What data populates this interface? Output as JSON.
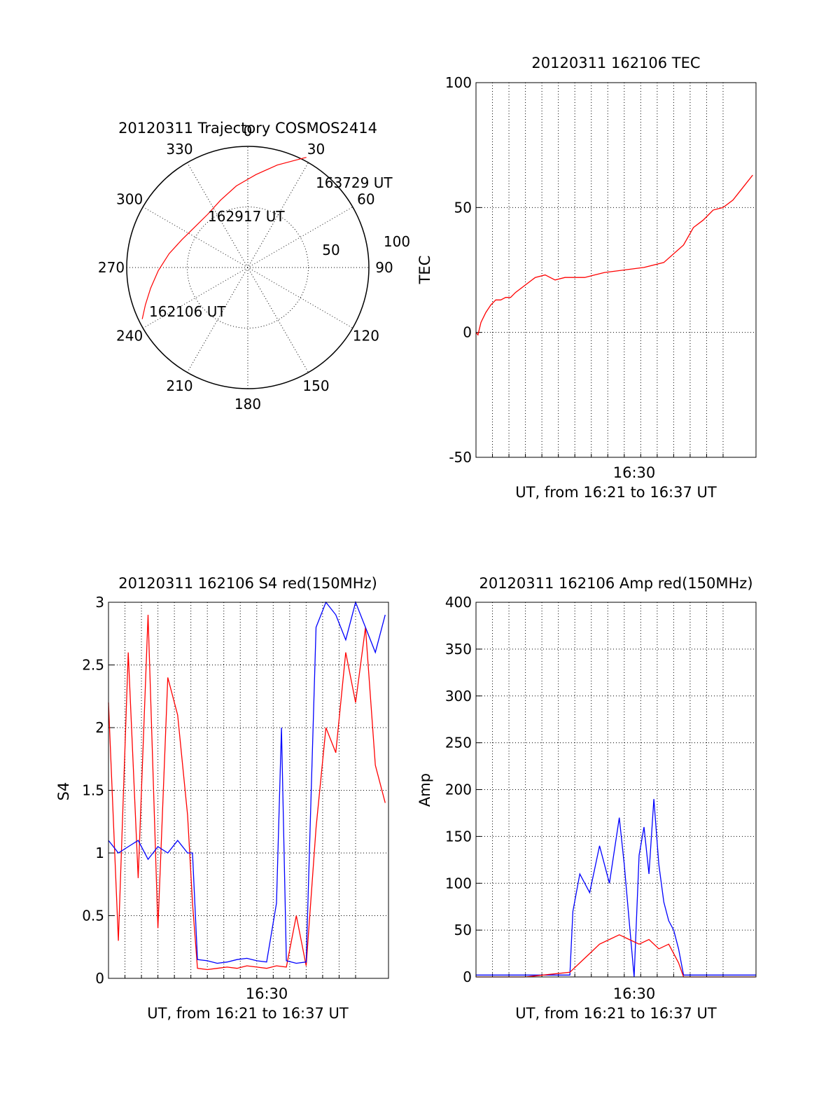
{
  "colors": {
    "red_series": "#ff0000",
    "blue_series": "#0000ff",
    "axes": "#000000"
  },
  "chart_data": [
    {
      "type": "polar",
      "title": "20120311 Trajectory COSMOS2414",
      "angle_labels": [
        {
          "angle": 0,
          "text": "0"
        },
        {
          "angle": 30,
          "text": "30"
        },
        {
          "angle": 60,
          "text": "60"
        },
        {
          "angle": 90,
          "text": "90"
        },
        {
          "angle": 120,
          "text": "120"
        },
        {
          "angle": 150,
          "text": "150"
        },
        {
          "angle": 180,
          "text": "180"
        },
        {
          "angle": 210,
          "text": "210"
        },
        {
          "angle": 240,
          "text": "240"
        },
        {
          "angle": 270,
          "text": "270"
        },
        {
          "angle": 300,
          "text": "300"
        },
        {
          "angle": 330,
          "text": "330"
        }
      ],
      "ring_labels": [
        "50",
        "100"
      ],
      "rings": [
        50,
        100
      ],
      "r_max": 100,
      "trajectory": [
        {
          "az": 244,
          "r": 97
        },
        {
          "az": 250,
          "r": 90
        },
        {
          "az": 258,
          "r": 82
        },
        {
          "az": 268,
          "r": 74
        },
        {
          "az": 280,
          "r": 66
        },
        {
          "az": 293,
          "r": 59
        },
        {
          "az": 308,
          "r": 55
        },
        {
          "az": 323,
          "r": 55
        },
        {
          "az": 338,
          "r": 60
        },
        {
          "az": 352,
          "r": 68
        },
        {
          "az": 5,
          "r": 77
        },
        {
          "az": 16,
          "r": 88
        },
        {
          "az": 24,
          "r": 97
        },
        {
          "az": 28,
          "r": 103
        }
      ],
      "annotations": [
        {
          "text": "163729 UT",
          "at": "end"
        },
        {
          "text": "162917 UT",
          "at": "middle"
        },
        {
          "text": "162106 UT",
          "at": "start"
        }
      ]
    },
    {
      "type": "line",
      "title": "20120311 162106 TEC",
      "ylabel": "TEC",
      "xlabel": "UT, from 16:21 to 16:37 UT",
      "xtick_label": "16:30",
      "xlim_min": [
        16.35,
        16.6333
      ],
      "ylim": [
        -50,
        100
      ],
      "yticks": [
        "-50",
        "0",
        "50",
        "100"
      ],
      "series": [
        {
          "name": "TEC",
          "color": "red",
          "x_min": [
            16.35,
            16.352,
            16.355,
            16.36,
            16.365,
            16.37,
            16.375,
            16.38,
            16.385,
            16.39,
            16.4,
            16.41,
            16.42,
            16.43,
            16.44,
            16.45,
            16.46,
            16.47,
            16.48,
            16.5,
            16.52,
            16.54,
            16.56,
            16.57,
            16.58,
            16.59,
            16.6,
            16.61,
            16.62,
            16.63
          ],
          "values": [
            0,
            -1,
            4,
            8,
            11,
            13,
            13,
            14,
            14,
            16,
            19,
            22,
            23,
            21,
            22,
            22,
            22,
            23,
            24,
            25,
            26,
            28,
            35,
            42,
            45,
            49,
            50,
            53,
            58,
            63
          ]
        }
      ]
    },
    {
      "type": "line",
      "title": "20120311 162106 S4 red(150MHz)",
      "ylabel": "S4",
      "xlabel": "UT, from 16:21 to 16:37 UT",
      "xtick_label": "16:30",
      "xlim_min": [
        16.35,
        16.6333
      ],
      "ylim": [
        0,
        3
      ],
      "yticks": [
        "0",
        "0.5",
        "1",
        "1.5",
        "2",
        "2.5",
        "3"
      ],
      "series": [
        {
          "name": "S4 red",
          "color": "red",
          "x_min": [
            16.35,
            16.36,
            16.37,
            16.38,
            16.39,
            16.4,
            16.41,
            16.42,
            16.43,
            16.435,
            16.44,
            16.45,
            16.46,
            16.47,
            16.48,
            16.49,
            16.5,
            16.51,
            16.52,
            16.53,
            16.54,
            16.55,
            16.56,
            16.57,
            16.58,
            16.59,
            16.6,
            16.61,
            16.62,
            16.63
          ],
          "values": [
            2.2,
            0.3,
            2.6,
            0.8,
            2.9,
            0.4,
            2.4,
            2.1,
            1.3,
            0.6,
            0.08,
            0.07,
            0.08,
            0.09,
            0.08,
            0.1,
            0.09,
            0.08,
            0.1,
            0.09,
            0.5,
            0.1,
            1.2,
            2.0,
            1.8,
            2.6,
            2.2,
            2.8,
            1.7,
            1.4
          ]
        },
        {
          "name": "S4 blue",
          "color": "blue",
          "x_min": [
            16.35,
            16.36,
            16.37,
            16.38,
            16.39,
            16.4,
            16.41,
            16.42,
            16.43,
            16.435,
            16.44,
            16.45,
            16.46,
            16.47,
            16.48,
            16.49,
            16.5,
            16.51,
            16.52,
            16.525,
            16.53,
            16.54,
            16.55,
            16.56,
            16.57,
            16.58,
            16.59,
            16.6,
            16.61,
            16.62,
            16.63
          ],
          "values": [
            1.1,
            1.0,
            1.05,
            1.1,
            0.95,
            1.05,
            1.0,
            1.1,
            1.0,
            1.0,
            0.15,
            0.14,
            0.12,
            0.13,
            0.15,
            0.16,
            0.14,
            0.13,
            0.6,
            2.0,
            0.14,
            0.12,
            0.13,
            2.8,
            3.0,
            2.9,
            2.7,
            3.0,
            2.8,
            2.6,
            2.9
          ]
        }
      ]
    },
    {
      "type": "line",
      "title": "20120311 162106 Amp red(150MHz)",
      "ylabel": "Amp",
      "xlabel": "UT, from 16:21 to 16:37 UT",
      "xtick_label": "16:30",
      "xlim_min": [
        16.35,
        16.6333
      ],
      "ylim": [
        0,
        400
      ],
      "yticks": [
        "0",
        "50",
        "100",
        "150",
        "200",
        "250",
        "300",
        "350",
        "400"
      ],
      "series": [
        {
          "name": "Amp blue",
          "color": "blue",
          "x_min": [
            16.35,
            16.4,
            16.445,
            16.448,
            16.455,
            16.465,
            16.475,
            16.485,
            16.495,
            16.5,
            16.505,
            16.51,
            16.515,
            16.52,
            16.525,
            16.53,
            16.535,
            16.54,
            16.545,
            16.55,
            16.555,
            16.56,
            16.6,
            16.633
          ],
          "values": [
            2,
            2,
            2,
            70,
            110,
            90,
            140,
            100,
            170,
            120,
            60,
            0,
            130,
            160,
            110,
            190,
            120,
            80,
            60,
            50,
            30,
            2,
            2,
            2
          ]
        },
        {
          "name": "Amp red",
          "color": "red",
          "x_min": [
            16.35,
            16.4,
            16.445,
            16.455,
            16.465,
            16.475,
            16.485,
            16.495,
            16.505,
            16.515,
            16.525,
            16.535,
            16.545,
            16.55,
            16.555,
            16.56,
            16.6,
            16.633
          ],
          "values": [
            0,
            0,
            5,
            15,
            25,
            35,
            40,
            45,
            40,
            35,
            40,
            30,
            35,
            25,
            15,
            0,
            0,
            0
          ]
        }
      ]
    }
  ]
}
